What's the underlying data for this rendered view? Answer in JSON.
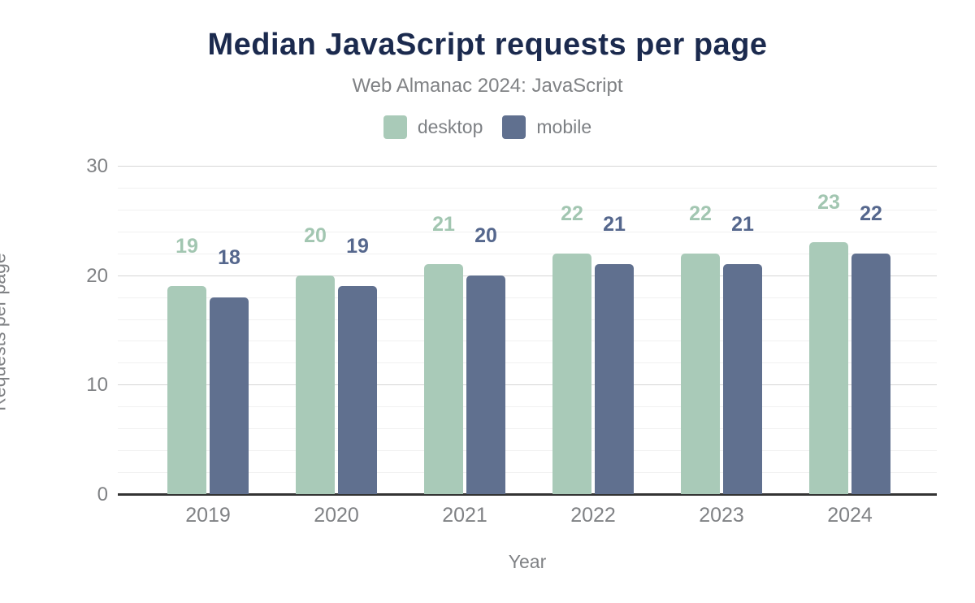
{
  "chart_data": {
    "type": "bar",
    "title": "Median JavaScript requests per page",
    "subtitle": "Web Almanac 2024: JavaScript",
    "xlabel": "Year",
    "ylabel": "Requests per page",
    "categories": [
      "2019",
      "2020",
      "2021",
      "2022",
      "2023",
      "2024"
    ],
    "series": [
      {
        "name": "desktop",
        "color": "#a9cab8",
        "label_color": "#a2c6b1",
        "values": [
          19,
          20,
          21,
          22,
          22,
          23
        ]
      },
      {
        "name": "mobile",
        "color": "#60708f",
        "label_color": "#55678d",
        "values": [
          18,
          19,
          20,
          21,
          21,
          22
        ]
      }
    ],
    "ylim": [
      0,
      30
    ],
    "yticks": [
      0,
      10,
      20,
      30
    ],
    "minor_grid_step": 2,
    "grid": "on",
    "legend_position": "top",
    "colors": {
      "title": "#1b2a4e",
      "subtitle": "#808285",
      "axis_text": "#808285",
      "axis_line": "#333333",
      "major_grid": "#d6d6d6",
      "minor_grid": "#f1f1f1",
      "background": "#ffffff"
    }
  }
}
